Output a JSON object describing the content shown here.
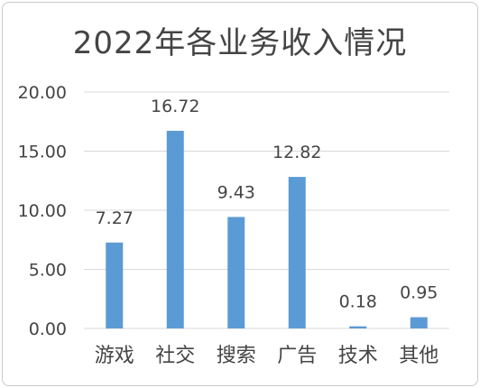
{
  "chart_data": {
    "type": "bar",
    "title": "2022年各业务收入情况",
    "categories": [
      "游戏",
      "社交",
      "搜索",
      "广告",
      "技术",
      "其他"
    ],
    "values": [
      7.27,
      16.72,
      9.43,
      12.82,
      0.18,
      0.95
    ],
    "value_labels": [
      "7.27",
      "16.72",
      "9.43",
      "12.82",
      "0.18",
      "0.95"
    ],
    "y_ticks": [
      "0.00",
      "5.00",
      "10.00",
      "15.00",
      "20.00"
    ],
    "ylim": [
      0,
      20
    ],
    "grid": true,
    "legend": "none",
    "bar_color": "#5b9bd5",
    "grid_color": "#d9d9d9",
    "text_color": "#444444"
  }
}
